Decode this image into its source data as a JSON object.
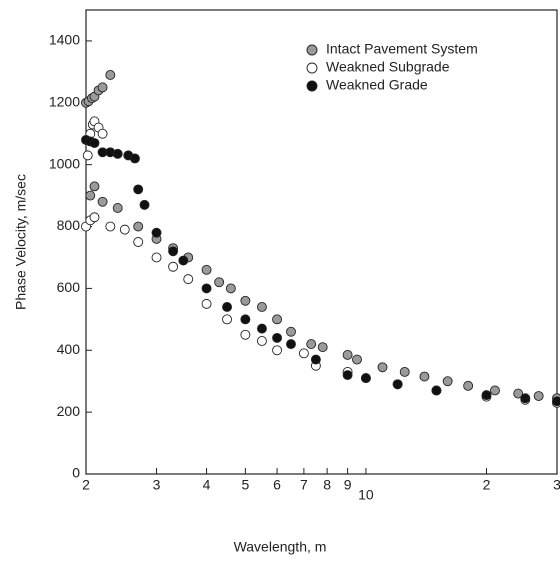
{
  "chart_data": {
    "type": "scatter",
    "xlabel": "Wavelength, m",
    "ylabel": "Phase Velocity, m/sec",
    "xscale": "log",
    "legend": "upper right",
    "xlim": [
      2,
      30
    ],
    "ylim": [
      0,
      1500
    ],
    "xticks": [
      2,
      3,
      4,
      5,
      6,
      7,
      8,
      9,
      10,
      {
        "value": 20,
        "label": "2"
      },
      {
        "value": 30,
        "label": "3"
      }
    ],
    "yticks": [
      0,
      200,
      400,
      600,
      800,
      1000,
      1200,
      1400
    ],
    "series": [
      {
        "name": "Intact Pavement System",
        "color": "#9a9a9a",
        "x": [
          2.0,
          2.03,
          2.07,
          2.1,
          2.15,
          2.2,
          2.3,
          2.05,
          2.1,
          2.2,
          2.4,
          2.7,
          3.0,
          3.3,
          3.6,
          4.0,
          4.3,
          4.6,
          5.0,
          5.5,
          6.0,
          6.5,
          7.3,
          7.8,
          9.0,
          9.5,
          11.0,
          12.5,
          14.0,
          16.0,
          18.0,
          21.0,
          24.0,
          27.0,
          30.0
        ],
        "values": [
          1200,
          1205,
          1215,
          1220,
          1240,
          1250,
          1290,
          900,
          930,
          880,
          860,
          800,
          760,
          730,
          700,
          660,
          620,
          600,
          560,
          540,
          500,
          460,
          420,
          410,
          385,
          370,
          345,
          330,
          315,
          300,
          285,
          270,
          260,
          252,
          245
        ]
      },
      {
        "name": "Weakned Subgrade",
        "color": "#ffffff",
        "x": [
          2.0,
          2.02,
          2.05,
          2.08,
          2.1,
          2.15,
          2.2,
          2.05,
          2.1,
          2.3,
          2.5,
          2.7,
          3.0,
          3.3,
          3.6,
          4.0,
          4.5,
          5.0,
          5.5,
          6.0,
          7.0,
          7.5,
          9.0,
          10.0,
          12.0,
          15.0,
          20.0,
          25.0,
          30.0
        ],
        "values": [
          800,
          1030,
          1100,
          1130,
          1140,
          1120,
          1100,
          820,
          830,
          800,
          790,
          750,
          700,
          670,
          630,
          550,
          500,
          450,
          430,
          400,
          390,
          350,
          330,
          310,
          290,
          270,
          250,
          240,
          230
        ]
      },
      {
        "name": "Weakned Grade",
        "color": "#111111",
        "x": [
          2.0,
          2.05,
          2.1,
          2.2,
          2.3,
          2.4,
          2.55,
          2.65,
          2.7,
          2.8,
          3.0,
          3.3,
          3.5,
          4.0,
          4.5,
          5.0,
          5.5,
          6.0,
          6.5,
          7.5,
          9.0,
          10.0,
          12.0,
          15.0,
          20.0,
          25.0,
          30.0
        ],
        "values": [
          1080,
          1075,
          1070,
          1040,
          1040,
          1035,
          1030,
          1020,
          920,
          870,
          780,
          720,
          690,
          600,
          540,
          500,
          470,
          440,
          420,
          370,
          320,
          310,
          290,
          270,
          255,
          245,
          235
        ]
      }
    ]
  }
}
